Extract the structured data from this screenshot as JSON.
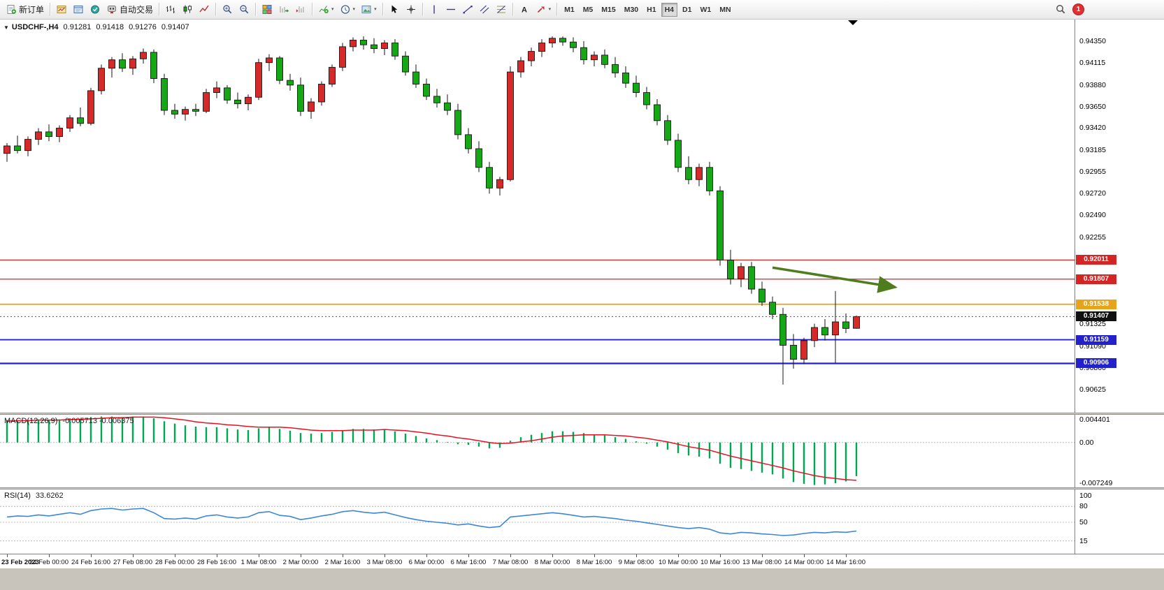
{
  "toolbar": {
    "groups": [
      {
        "name": "trade",
        "items": [
          {
            "name": "new-order-button",
            "icon": "new-order",
            "label": "新订单"
          }
        ]
      },
      {
        "name": "windows",
        "items": [
          {
            "name": "new-chart-button",
            "icon": "new-chart"
          },
          {
            "name": "profiles-button",
            "icon": "profiles"
          },
          {
            "name": "market-watch-button",
            "icon": "market-watch"
          },
          {
            "name": "autotrading-button",
            "icon": "autotrading",
            "label": "自动交易"
          }
        ]
      },
      {
        "name": "chart-type",
        "items": [
          {
            "name": "bar-chart-button",
            "icon": "bars"
          },
          {
            "name": "candlestick-chart-button",
            "icon": "candles"
          },
          {
            "name": "line-chart-button",
            "icon": "linechart"
          }
        ]
      },
      {
        "name": "zoom",
        "items": [
          {
            "name": "zoom-in-button",
            "icon": "zoom-in"
          },
          {
            "name": "zoom-out-button",
            "icon": "zoom-out"
          }
        ]
      },
      {
        "name": "arrange",
        "items": [
          {
            "name": "tile-windows-button",
            "icon": "tile"
          },
          {
            "name": "auto-scroll-button",
            "icon": "autoscroll"
          },
          {
            "name": "chart-shift-button",
            "icon": "chartshift"
          }
        ]
      },
      {
        "name": "chart-tools",
        "items": [
          {
            "name": "indicators-button",
            "icon": "indicators",
            "caret": true
          },
          {
            "name": "periods-button",
            "icon": "clock",
            "caret": true
          },
          {
            "name": "templates-button",
            "icon": "template",
            "caret": true
          }
        ]
      },
      {
        "name": "cursor-tools",
        "items": [
          {
            "name": "cursor-button",
            "icon": "cursor"
          },
          {
            "name": "crosshair-button",
            "icon": "crosshair"
          }
        ]
      },
      {
        "name": "line-tools",
        "items": [
          {
            "name": "vertical-line-button",
            "icon": "vline"
          },
          {
            "name": "horizontal-line-button",
            "icon": "hline"
          },
          {
            "name": "trendline-button",
            "icon": "trend"
          },
          {
            "name": "channel-button",
            "icon": "channel"
          },
          {
            "name": "fibonacci-button",
            "icon": "fibo"
          }
        ]
      },
      {
        "name": "object-tools",
        "items": [
          {
            "name": "text-button",
            "icon": "text"
          },
          {
            "name": "arrows-button",
            "icon": "arrows",
            "caret": true
          }
        ]
      }
    ],
    "timeframes": {
      "items": [
        "M1",
        "M5",
        "M15",
        "M30",
        "H1",
        "H4",
        "D1",
        "W1",
        "MN"
      ],
      "active": "H4"
    },
    "notification_count": "1"
  },
  "chart_data": [
    {
      "name": "price",
      "type": "candlestick",
      "symbol": "USDCHF-",
      "timeframe": "H4",
      "title_display": "USDCHF-,H4",
      "ohlc_display": {
        "open": "0.91281",
        "high": "0.91418",
        "low": "0.91276",
        "close": "0.91407"
      },
      "y_range": {
        "top": 0.9458,
        "bottom": 0.9038
      },
      "colors": {
        "bull": "#d62a2a",
        "bear": "#15a815",
        "outline": "#151515"
      },
      "price_ticks": [
        "0.94350",
        "0.94115",
        "0.93880",
        "0.93650",
        "0.93420",
        "0.93185",
        "0.92955",
        "0.92720",
        "0.92490",
        "0.92255",
        "0.92025",
        "0.91790",
        "0.91560",
        "0.91325",
        "0.91090",
        "0.90860",
        "0.90625"
      ],
      "levels": [
        {
          "label": "0.92011",
          "price": 0.92011,
          "color": "#d42525",
          "width": 1.3
        },
        {
          "label": "0.91807",
          "price": 0.91807,
          "color": "#d42525",
          "width": 1.3
        },
        {
          "label": "0.91538",
          "price": 0.91538,
          "color": "#e6a41c",
          "width": 1.8
        },
        {
          "label": "0.91159",
          "price": 0.91159,
          "color": "#2222cc",
          "width": 1.8
        },
        {
          "label": "0.90906",
          "price": 0.90906,
          "color": "#2222cc",
          "width": 2.2
        }
      ],
      "current_price": {
        "label": "0.91407",
        "value": 0.91407,
        "badge_color": "#101010"
      },
      "annotation_arrow": {
        "from_index": 73,
        "from_price": 0.9193,
        "to_index": 84.7,
        "to_price": 0.9172,
        "color": "#4e7d1e"
      },
      "time_labels": [
        {
          "label": "23 Feb 2023",
          "index": 0
        },
        {
          "label": "24 Feb 00:00",
          "index": 4
        },
        {
          "label": "24 Feb 16:00",
          "index": 8
        },
        {
          "label": "27 Feb 08:00",
          "index": 12
        },
        {
          "label": "28 Feb 00:00",
          "index": 16
        },
        {
          "label": "28 Feb 16:00",
          "index": 20
        },
        {
          "label": "1 Mar 08:00",
          "index": 24
        },
        {
          "label": "2 Mar 00:00",
          "index": 28
        },
        {
          "label": "2 Mar 16:00",
          "index": 32
        },
        {
          "label": "3 Mar 08:00",
          "index": 36
        },
        {
          "label": "6 Mar 00:00",
          "index": 40
        },
        {
          "label": "6 Mar 16:00",
          "index": 44
        },
        {
          "label": "7 Mar 08:00",
          "index": 48
        },
        {
          "label": "8 Mar 00:00",
          "index": 52
        },
        {
          "label": "8 Mar 16:00",
          "index": 56
        },
        {
          "label": "9 Mar 08:00",
          "index": 60
        },
        {
          "label": "10 Mar 00:00",
          "index": 64
        },
        {
          "label": "10 Mar 16:00",
          "index": 68
        },
        {
          "label": "13 Mar 08:00",
          "index": 72
        },
        {
          "label": "14 Mar 00:00",
          "index": 76
        },
        {
          "label": "14 Mar 16:00",
          "index": 80
        }
      ],
      "candles": [
        [
          0.9315,
          0.9326,
          0.9306,
          0.9323
        ],
        [
          0.9323,
          0.9334,
          0.9315,
          0.9318
        ],
        [
          0.9318,
          0.9333,
          0.9312,
          0.933
        ],
        [
          0.933,
          0.9342,
          0.9324,
          0.9338
        ],
        [
          0.9338,
          0.9346,
          0.9328,
          0.9333
        ],
        [
          0.9333,
          0.9345,
          0.9327,
          0.9342
        ],
        [
          0.9342,
          0.9356,
          0.9338,
          0.9353
        ],
        [
          0.9353,
          0.9364,
          0.9344,
          0.9347
        ],
        [
          0.9347,
          0.9385,
          0.9345,
          0.9382
        ],
        [
          0.9382,
          0.941,
          0.9378,
          0.9406
        ],
        [
          0.9406,
          0.9418,
          0.9396,
          0.9415
        ],
        [
          0.9415,
          0.9422,
          0.9402,
          0.9406
        ],
        [
          0.9406,
          0.9419,
          0.9399,
          0.9416
        ],
        [
          0.9416,
          0.9427,
          0.9411,
          0.9423
        ],
        [
          0.9423,
          0.9426,
          0.939,
          0.9395
        ],
        [
          0.9395,
          0.94,
          0.9356,
          0.9361
        ],
        [
          0.9361,
          0.9368,
          0.9352,
          0.9357
        ],
        [
          0.9357,
          0.9365,
          0.935,
          0.9362
        ],
        [
          0.9362,
          0.9368,
          0.9355,
          0.936
        ],
        [
          0.936,
          0.9384,
          0.9358,
          0.938
        ],
        [
          0.938,
          0.9392,
          0.9374,
          0.9385
        ],
        [
          0.9385,
          0.9388,
          0.9368,
          0.9372
        ],
        [
          0.9372,
          0.938,
          0.9363,
          0.9368
        ],
        [
          0.9368,
          0.9378,
          0.9361,
          0.9375
        ],
        [
          0.9375,
          0.9416,
          0.9372,
          0.9412
        ],
        [
          0.9412,
          0.9421,
          0.9403,
          0.9417
        ],
        [
          0.9417,
          0.9419,
          0.9389,
          0.9393
        ],
        [
          0.9393,
          0.94,
          0.9382,
          0.9388
        ],
        [
          0.9388,
          0.9396,
          0.9355,
          0.936
        ],
        [
          0.936,
          0.9374,
          0.9352,
          0.937
        ],
        [
          0.937,
          0.9392,
          0.9366,
          0.9389
        ],
        [
          0.9389,
          0.941,
          0.9386,
          0.9407
        ],
        [
          0.9407,
          0.9433,
          0.9403,
          0.9429
        ],
        [
          0.9429,
          0.9439,
          0.9424,
          0.9436
        ],
        [
          0.9436,
          0.944,
          0.9426,
          0.9431
        ],
        [
          0.9431,
          0.9438,
          0.9422,
          0.9427
        ],
        [
          0.9427,
          0.9436,
          0.942,
          0.9433
        ],
        [
          0.9433,
          0.9437,
          0.9415,
          0.9419
        ],
        [
          0.9419,
          0.9424,
          0.9398,
          0.9402
        ],
        [
          0.9402,
          0.941,
          0.9385,
          0.9389
        ],
        [
          0.9389,
          0.9395,
          0.9372,
          0.9376
        ],
        [
          0.9376,
          0.9384,
          0.9364,
          0.9369
        ],
        [
          0.9369,
          0.9378,
          0.9356,
          0.9361
        ],
        [
          0.9361,
          0.9368,
          0.933,
          0.9335
        ],
        [
          0.9335,
          0.9342,
          0.9315,
          0.932
        ],
        [
          0.932,
          0.9328,
          0.9295,
          0.93
        ],
        [
          0.93,
          0.9306,
          0.9272,
          0.9278
        ],
        [
          0.9278,
          0.929,
          0.927,
          0.9287
        ],
        [
          0.9287,
          0.9408,
          0.9285,
          0.9402
        ],
        [
          0.9402,
          0.9418,
          0.9396,
          0.9414
        ],
        [
          0.9414,
          0.9428,
          0.9408,
          0.9424
        ],
        [
          0.9424,
          0.9437,
          0.9418,
          0.9433
        ],
        [
          0.9433,
          0.944,
          0.9428,
          0.9438
        ],
        [
          0.9438,
          0.944,
          0.943,
          0.9434
        ],
        [
          0.9434,
          0.9439,
          0.9423,
          0.9428
        ],
        [
          0.9428,
          0.9435,
          0.941,
          0.9415
        ],
        [
          0.9415,
          0.9424,
          0.9408,
          0.942
        ],
        [
          0.942,
          0.9426,
          0.9406,
          0.941
        ],
        [
          0.941,
          0.9418,
          0.9396,
          0.9401
        ],
        [
          0.9401,
          0.9408,
          0.9385,
          0.939
        ],
        [
          0.939,
          0.9398,
          0.9375,
          0.938
        ],
        [
          0.938,
          0.9386,
          0.9362,
          0.9367
        ],
        [
          0.9367,
          0.9373,
          0.9345,
          0.935
        ],
        [
          0.935,
          0.9356,
          0.9324,
          0.9329
        ],
        [
          0.9329,
          0.9336,
          0.9295,
          0.93
        ],
        [
          0.93,
          0.9312,
          0.9282,
          0.9287
        ],
        [
          0.9287,
          0.9304,
          0.928,
          0.93
        ],
        [
          0.93,
          0.9306,
          0.927,
          0.9275
        ],
        [
          0.9275,
          0.928,
          0.9195,
          0.9201
        ],
        [
          0.9201,
          0.9212,
          0.9175,
          0.9181
        ],
        [
          0.9181,
          0.9198,
          0.9172,
          0.9194
        ],
        [
          0.9194,
          0.9199,
          0.9165,
          0.917
        ],
        [
          0.917,
          0.9178,
          0.9152,
          0.9156
        ],
        [
          0.9156,
          0.9162,
          0.9138,
          0.9143
        ],
        [
          0.9143,
          0.915,
          0.9068,
          0.911
        ],
        [
          0.911,
          0.9122,
          0.9085,
          0.9095
        ],
        [
          0.9095,
          0.9118,
          0.909,
          0.9115
        ],
        [
          0.9115,
          0.9133,
          0.9108,
          0.9129
        ],
        [
          0.9129,
          0.9138,
          0.9115,
          0.9121
        ],
        [
          0.9121,
          0.9168,
          0.9091,
          0.9135
        ],
        [
          0.9135,
          0.9144,
          0.9123,
          0.9128
        ],
        [
          0.91281,
          0.91418,
          0.91276,
          0.91407
        ]
      ]
    },
    {
      "name": "macd",
      "type": "bar+line",
      "label": "MACD(12,26,9)",
      "display_values": "-0.005713 -0.006375",
      "y_range": {
        "top": 0.0047,
        "bottom": -0.0076
      },
      "colors": {
        "histogram": "#00a651",
        "signal": "#e81123"
      },
      "axis_labels": [
        {
          "text": "0.004401",
          "value": 0.004401
        },
        {
          "text": "0.00",
          "value": 0
        },
        {
          "text": "-0.007249",
          "value": -0.007249
        }
      ],
      "histogram": [
        0.0038,
        0.0037,
        0.0038,
        0.0039,
        0.0038,
        0.0039,
        0.0041,
        0.004,
        0.0043,
        0.0044,
        0.0044,
        0.0043,
        0.0044,
        0.0044,
        0.0041,
        0.0036,
        0.0032,
        0.0029,
        0.0027,
        0.0026,
        0.0026,
        0.0024,
        0.0022,
        0.0021,
        0.0024,
        0.0026,
        0.0023,
        0.002,
        0.0016,
        0.0015,
        0.0016,
        0.0018,
        0.0021,
        0.0023,
        0.0023,
        0.0022,
        0.0022,
        0.0019,
        0.0015,
        0.0011,
        0.0007,
        0.0004,
        0.0001,
        -0.0003,
        -0.0004,
        -0.0007,
        -0.001,
        -0.0009,
        0.0003,
        0.0009,
        0.0013,
        0.0016,
        0.0019,
        0.0019,
        0.0018,
        0.0016,
        0.0014,
        0.0012,
        0.0009,
        0.0006,
        0.0002,
        -0.0002,
        -0.0007,
        -0.0012,
        -0.0018,
        -0.0022,
        -0.0024,
        -0.0027,
        -0.0036,
        -0.0043,
        -0.0045,
        -0.0048,
        -0.0051,
        -0.0054,
        -0.0061,
        -0.0067,
        -0.007,
        -0.0072,
        -0.0071,
        -0.0069,
        -0.0066,
        -0.0057
      ],
      "signal": [
        0.0036,
        0.0037,
        0.0037,
        0.0038,
        0.0038,
        0.0038,
        0.0039,
        0.0039,
        0.004,
        0.0041,
        0.0042,
        0.0042,
        0.0043,
        0.0043,
        0.0043,
        0.0042,
        0.004,
        0.0038,
        0.0035,
        0.0033,
        0.0032,
        0.003,
        0.0029,
        0.0027,
        0.0026,
        0.0026,
        0.0026,
        0.0025,
        0.0023,
        0.0021,
        0.002,
        0.002,
        0.002,
        0.0021,
        0.0021,
        0.0021,
        0.0022,
        0.0021,
        0.002,
        0.0018,
        0.0016,
        0.0013,
        0.0011,
        0.0008,
        0.0006,
        0.0003,
        0.0,
        -0.0002,
        -0.0001,
        0.0001,
        0.0003,
        0.0006,
        0.0009,
        0.0011,
        0.0012,
        0.0013,
        0.0013,
        0.0013,
        0.0012,
        0.0011,
        0.0009,
        0.0007,
        0.0004,
        0.0001,
        -0.0003,
        -0.0007,
        -0.001,
        -0.0013,
        -0.0018,
        -0.0023,
        -0.0027,
        -0.0031,
        -0.0035,
        -0.0039,
        -0.0043,
        -0.0048,
        -0.0052,
        -0.0056,
        -0.0059,
        -0.0061,
        -0.0063,
        -0.0064
      ]
    },
    {
      "name": "rsi",
      "type": "line",
      "label": "RSI(14)",
      "display_value": "33.6262",
      "scale": {
        "min": 0,
        "max": 100
      },
      "color": "#3e86d6",
      "levels": [
        80,
        50,
        15
      ],
      "axis_labels": [
        {
          "text": "100",
          "value": 100
        },
        {
          "text": "80",
          "value": 80
        },
        {
          "text": "50",
          "value": 50
        },
        {
          "text": "15",
          "value": 15
        }
      ],
      "values": [
        60,
        62,
        61,
        64,
        62,
        65,
        68,
        65,
        72,
        75,
        76,
        73,
        75,
        76,
        68,
        57,
        56,
        58,
        56,
        62,
        64,
        60,
        58,
        60,
        68,
        70,
        63,
        61,
        55,
        58,
        62,
        65,
        70,
        72,
        69,
        67,
        69,
        64,
        59,
        55,
        52,
        50,
        48,
        45,
        47,
        43,
        40,
        42,
        60,
        62,
        64,
        66,
        68,
        66,
        63,
        60,
        61,
        59,
        57,
        54,
        52,
        49,
        46,
        43,
        40,
        38,
        40,
        37,
        30,
        28,
        31,
        30,
        28,
        27,
        25,
        26,
        29,
        31,
        30,
        32,
        31,
        33.6
      ]
    }
  ]
}
